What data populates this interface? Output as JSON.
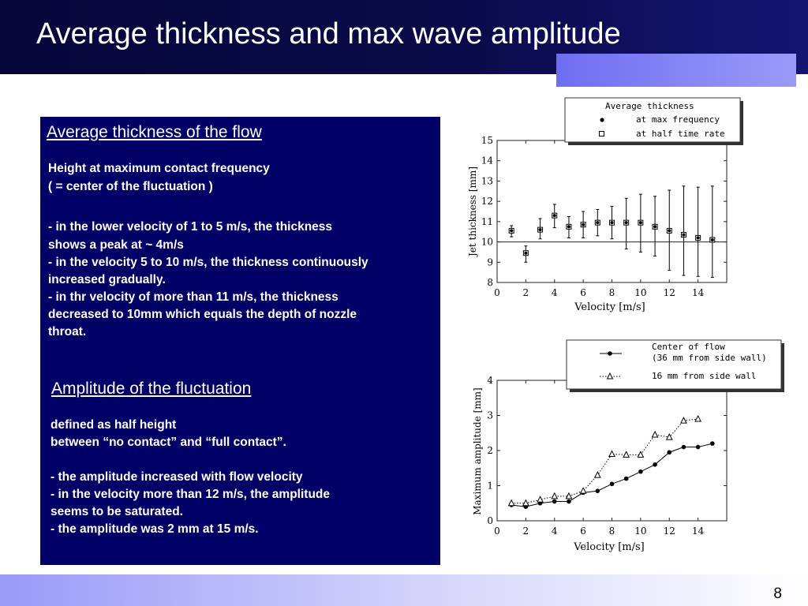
{
  "slide": {
    "title": "Average thickness and max wave amplitude",
    "page_number": "8"
  },
  "text_panel": {
    "section1": {
      "heading": "Average thickness of the flow",
      "lines": [
        " Height at maximum contact frequency",
        "( = center of the fluctuation )",
        "- in the lower velocity of 1 to 5 m/s, the thickness",
        "  shows a peak at ~ 4m/s",
        "- in the velocity 5 to 10 m/s, the thickness  continuously",
        "  increased gradually.",
        "- in thr velocity of more than 11 m/s, the thickness",
        "  decreased to 10mm which equals the depth of nozzle",
        "  throat."
      ]
    },
    "section2": {
      "heading": "Amplitude of the fluctuation",
      "lines": [
        "defined as half height",
        "between “no contact” and  “full contact”.",
        "",
        "- the amplitude increased with flow velocity",
        "- in the velocity more than 12 m/s, the amplitude",
        "  seems to be saturated.",
        "- the amplitude was 2 mm at 15 m/s."
      ]
    }
  },
  "chart_data": [
    {
      "type": "scatter",
      "xlabel": "Velocity [m/s]",
      "ylabel": "Jet thickness [mm]",
      "xlim": [
        0,
        16
      ],
      "ylim": [
        8,
        15
      ],
      "xticks": [
        0,
        2,
        4,
        6,
        8,
        10,
        12,
        14
      ],
      "yticks": [
        8,
        9,
        10,
        11,
        12,
        13,
        14,
        15
      ],
      "reference_line_y": 10,
      "legend": {
        "title": "Average thickness",
        "entries": [
          "at max frequency",
          "at half time rate"
        ]
      },
      "series": [
        {
          "name": "at max frequency",
          "marker": "filled-circle",
          "x": [
            1,
            2,
            3,
            4,
            5,
            6,
            7,
            8,
            9,
            10,
            11,
            12,
            13,
            14,
            15
          ],
          "y": [
            10.55,
            9.45,
            10.6,
            11.3,
            10.75,
            10.85,
            10.95,
            10.95,
            10.95,
            10.95,
            10.75,
            10.55,
            10.35,
            10.2,
            10.1
          ]
        },
        {
          "name": "at half time rate",
          "marker": "open-square",
          "x": [
            1,
            2,
            3,
            4,
            5,
            6,
            7,
            8,
            9,
            10,
            11,
            12,
            13,
            14,
            15
          ],
          "y": [
            10.55,
            9.45,
            10.6,
            11.3,
            10.75,
            10.85,
            10.95,
            10.95,
            10.95,
            10.95,
            10.75,
            10.55,
            10.35,
            10.2,
            10.1
          ],
          "error_low": [
            10.25,
            9.0,
            10.15,
            10.7,
            10.2,
            10.2,
            10.3,
            10.15,
            9.65,
            9.5,
            9.3,
            8.6,
            8.35,
            8.3,
            8.25
          ],
          "error_high": [
            10.8,
            9.8,
            11.15,
            11.85,
            11.25,
            11.5,
            11.6,
            11.75,
            12.15,
            12.35,
            12.25,
            12.55,
            12.75,
            12.7,
            12.75
          ]
        }
      ]
    },
    {
      "type": "line",
      "xlabel": "Velocity [m/s]",
      "ylabel": "Maximum amplitude [mm]",
      "xlim": [
        0,
        16
      ],
      "ylim": [
        0,
        4
      ],
      "xticks": [
        0,
        2,
        4,
        6,
        8,
        10,
        12,
        14
      ],
      "yticks": [
        0,
        1,
        2,
        3,
        4
      ],
      "legend": {
        "entries": [
          "Center of flow",
          "(36 mm from side wall)",
          "16 mm from side wall"
        ]
      },
      "series": [
        {
          "name": "Center of flow (36 mm from side wall)",
          "marker": "filled-circle",
          "line": "solid",
          "x": [
            1,
            2,
            3,
            4,
            5,
            6,
            7,
            8,
            9,
            10,
            11,
            12,
            13,
            14,
            15
          ],
          "y": [
            0.45,
            0.4,
            0.5,
            0.55,
            0.55,
            0.8,
            0.85,
            1.05,
            1.2,
            1.4,
            1.6,
            1.95,
            2.1,
            2.1,
            2.2
          ]
        },
        {
          "name": "16 mm from side wall",
          "marker": "open-triangle",
          "line": "dotted",
          "x": [
            1,
            2,
            3,
            4,
            5,
            6,
            7,
            8,
            9,
            10,
            11,
            12,
            13,
            14,
            15
          ],
          "y": [
            0.5,
            0.5,
            0.6,
            0.7,
            0.7,
            0.85,
            1.3,
            1.9,
            1.88,
            1.88,
            2.45,
            2.38,
            2.85,
            2.9,
            null
          ]
        }
      ]
    }
  ]
}
